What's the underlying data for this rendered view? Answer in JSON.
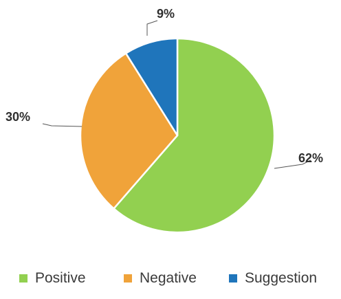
{
  "chart_data": {
    "type": "pie",
    "title": "",
    "categories": [
      "Positive",
      "Negative",
      "Suggestion"
    ],
    "values": [
      62,
      30,
      9
    ],
    "data_labels": [
      "62%",
      "30%",
      "9%"
    ],
    "colors": [
      "#92d050",
      "#f0a33a",
      "#1f75bb"
    ],
    "start_angle_deg": 0,
    "direction": "clockwise",
    "legend": {
      "position": "bottom",
      "entries": [
        "Positive",
        "Negative",
        "Suggestion"
      ]
    }
  }
}
